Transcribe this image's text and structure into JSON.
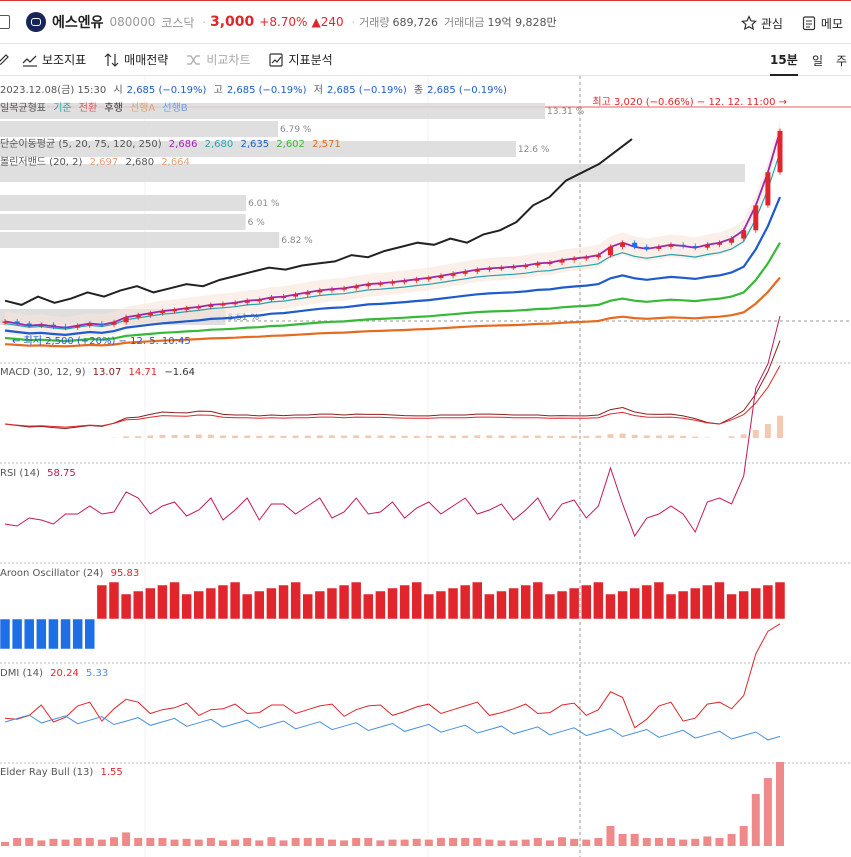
{
  "header": {
    "name": "에스엔유",
    "code": "080000",
    "market": "코스닥",
    "price": "3,000",
    "change_pct": "+8.70%",
    "change": "240",
    "volume_label": "거래량",
    "volume": "689,726",
    "amount_label": "거래대금",
    "amount": "19억 9,828만",
    "watch_label": "관심",
    "memo_label": "메모"
  },
  "toolbar": {
    "aux_indicator": "보조지표",
    "trade_strategy": "매매전략",
    "compare_chart": "비교차트",
    "indicator_analysis": "지표분석",
    "tf_15": "15분",
    "tf_day": "일",
    "tf_week": "주"
  },
  "chart_data": {
    "type": "candlestick",
    "ohlc_info": {
      "date": "2023.12.08(금) 15:30",
      "open_l": "시",
      "open": "2,685 (−0.19%)",
      "high_l": "고",
      "high": "2,685 (−0.19%)",
      "low_l": "저",
      "low": "2,685 (−0.19%)",
      "close_l": "종",
      "close": "2,685 (−0.19%)"
    },
    "ichimoku": {
      "label": "일목균형표",
      "a": "기준",
      "b": "전환",
      "c": "후행",
      "d": "선행A",
      "e": "선행B"
    },
    "ma": {
      "label": "단순이동평균 (5, 20, 75, 120, 250)",
      "values": [
        "2,686",
        "2,680",
        "2,635",
        "2,602",
        "2,571"
      ],
      "colors": [
        "#9c27b0",
        "#26a2b0",
        "#1e5bcc",
        "#37b837",
        "#e66a1f"
      ]
    },
    "bollinger": {
      "label": "볼린저밴드 (20, 2)",
      "values": [
        "2,697",
        "2,680",
        "2,664"
      ]
    },
    "high_annotation": "최고 3,020 (−0.66%) − 12. 12. 11:00 →",
    "low_annotation": "← 최저 2,500 (+20%) − 12. 5. 10:45",
    "volume_profile_labels": [
      "13.31 %",
      "6.79 %",
      "12.6 %",
      "6.01 %",
      "6 %",
      "6.82 %",
      "5.51 %"
    ],
    "volume_profile_values": [
      13.31,
      6.79,
      12.6,
      6.01,
      6,
      6.82,
      5.51
    ],
    "price_range": [
      2480,
      3040
    ],
    "close_series": [
      2520,
      2515,
      2510,
      2512,
      2508,
      2505,
      2510,
      2515,
      2512,
      2518,
      2530,
      2535,
      2540,
      2545,
      2548,
      2552,
      2555,
      2560,
      2562,
      2565,
      2570,
      2572,
      2578,
      2580,
      2585,
      2590,
      2595,
      2598,
      2600,
      2605,
      2610,
      2612,
      2615,
      2618,
      2622,
      2625,
      2630,
      2635,
      2640,
      2645,
      2648,
      2650,
      2652,
      2655,
      2660,
      2662,
      2668,
      2672,
      2675,
      2680,
      2700,
      2710,
      2700,
      2695,
      2700,
      2705,
      2702,
      2698,
      2705,
      2710,
      2720,
      2740,
      2800,
      2880,
      2980
    ],
    "lagging_series": [
      2570,
      2560,
      2580,
      2565,
      2575,
      2590,
      2580,
      2595,
      2605,
      2590,
      2600,
      2610,
      2605,
      2620,
      2630,
      2640,
      2650,
      2645,
      2655,
      2660,
      2665,
      2680,
      2675,
      2690,
      2700,
      2710,
      2705,
      2720,
      2710,
      2730,
      2740,
      2760,
      2800,
      2820,
      2860,
      2880,
      2900,
      2930,
      2960
    ]
  },
  "indicators": {
    "macd": {
      "label": "MACD (30, 12, 9)",
      "v1": "13.07",
      "v2": "14.71",
      "v3": "−1.64"
    },
    "rsi": {
      "label": "RSI (14)",
      "v1": "58.75"
    },
    "aroon": {
      "label": "Aroon Oscillator (24)",
      "v1": "95.83"
    },
    "dmi": {
      "label": "DMI (14)",
      "v1": "20.24",
      "v2": "5.33"
    },
    "elder": {
      "label": "Elder Ray Bull (13)",
      "v1": "1.55"
    }
  }
}
